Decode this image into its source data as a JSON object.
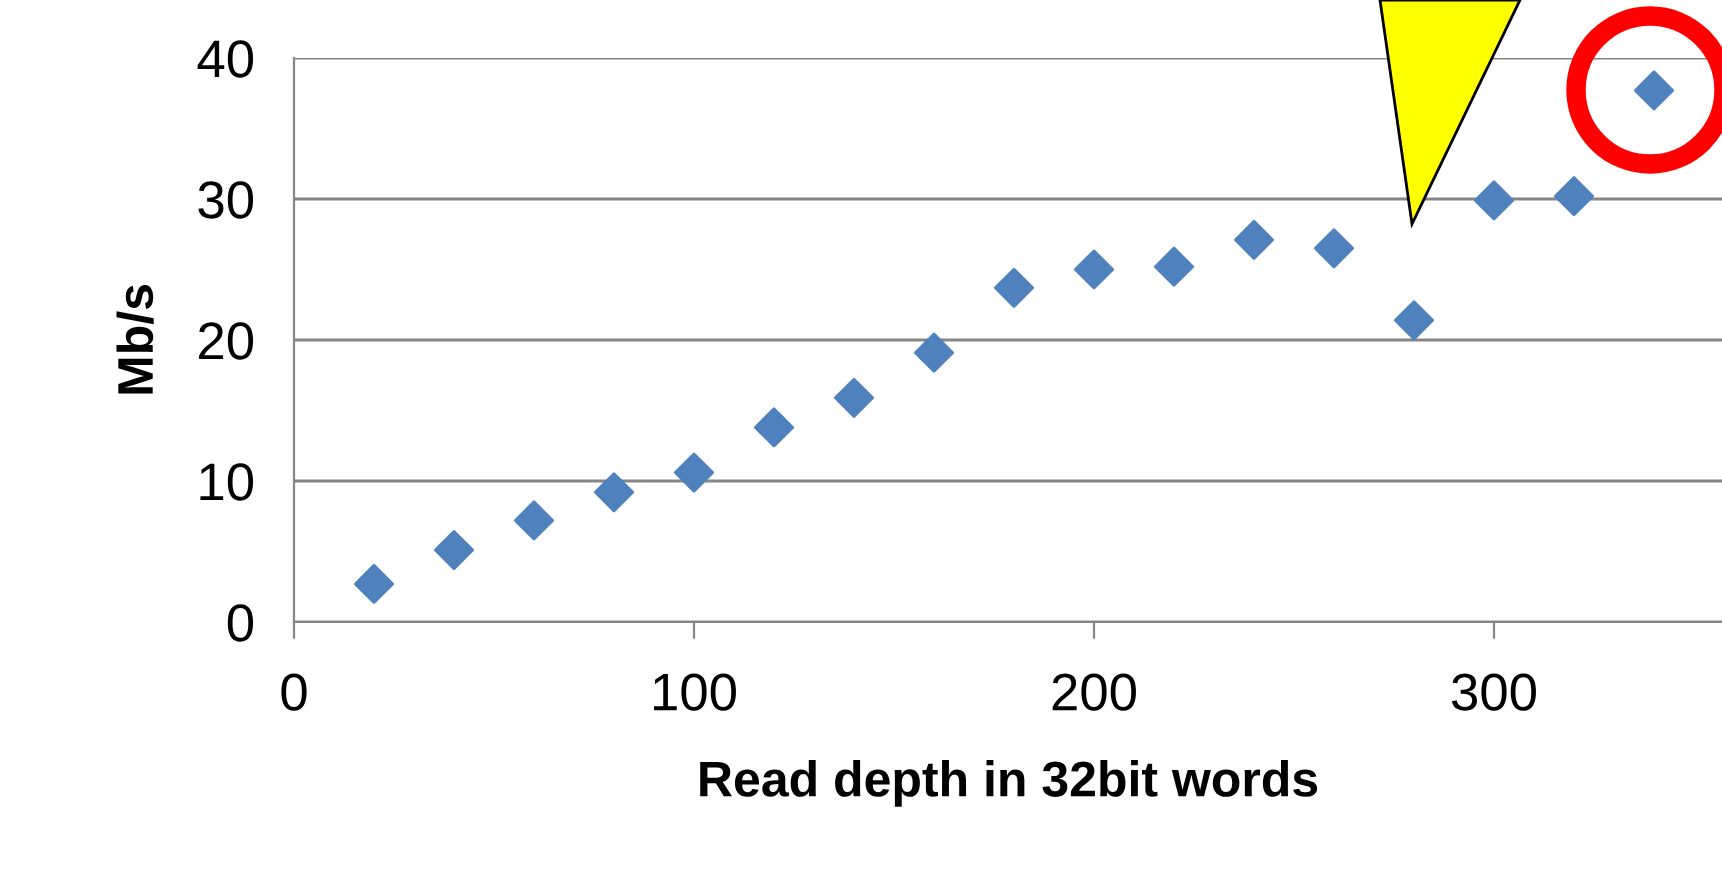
{
  "chart_data": {
    "type": "scatter",
    "xlabel": "Read depth in 32bit words",
    "ylabel": "Mb/s",
    "x": [
      20,
      40,
      60,
      80,
      100,
      120,
      140,
      160,
      180,
      200,
      220,
      240,
      260,
      280,
      300,
      320,
      340
    ],
    "series": [
      {
        "color": "#4f81bd",
        "values": [
          2.7,
          5.1,
          7.2,
          9.2,
          10.6,
          13.8,
          15.9,
          19.1,
          23.7,
          25.0,
          25.2,
          27.1,
          26.5,
          21.4,
          29.9,
          30.2,
          37.7
        ]
      }
    ],
    "xlim": [
      0,
      357
    ],
    "xticks": [
      0,
      100,
      200,
      300
    ],
    "ylim": [
      0,
      40
    ],
    "yticks": [
      0,
      10,
      20,
      30,
      40
    ],
    "grid": "y",
    "marker": "diamond"
  }
}
